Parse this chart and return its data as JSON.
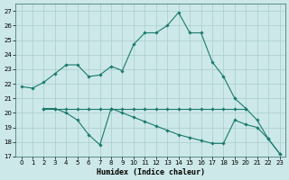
{
  "xlabel": "Humidex (Indice chaleur)",
  "bg_color": "#cce8e8",
  "grid_color": "#aacccc",
  "line_color": "#1a7a6e",
  "xlim": [
    -0.5,
    23.5
  ],
  "ylim": [
    17,
    27.5
  ],
  "yticks": [
    17,
    18,
    19,
    20,
    21,
    22,
    23,
    24,
    25,
    26,
    27
  ],
  "xticks": [
    0,
    1,
    2,
    3,
    4,
    5,
    6,
    7,
    8,
    9,
    10,
    11,
    12,
    13,
    14,
    15,
    16,
    17,
    18,
    19,
    20,
    21,
    22,
    23
  ],
  "line1_x": [
    0,
    1,
    2,
    3,
    4,
    5,
    6,
    7,
    8,
    9,
    10,
    11,
    12,
    13,
    14,
    15,
    16,
    17,
    18,
    19,
    20,
    21,
    22,
    23
  ],
  "line1_y": [
    21.8,
    21.7,
    22.1,
    22.7,
    23.3,
    23.3,
    22.5,
    22.6,
    23.2,
    22.9,
    24.7,
    25.5,
    25.5,
    26.0,
    26.9,
    25.5,
    25.5,
    23.5,
    22.5,
    21.0,
    20.3,
    19.5,
    18.2,
    17.2
  ],
  "line2_x": [
    2,
    3,
    4,
    5,
    6,
    7,
    8,
    9,
    10,
    11,
    12,
    13,
    14,
    15,
    16,
    17,
    18,
    19,
    20
  ],
  "line2_y": [
    20.3,
    20.3,
    20.3,
    20.3,
    20.3,
    20.3,
    20.3,
    20.3,
    20.3,
    20.3,
    20.3,
    20.3,
    20.3,
    20.3,
    20.3,
    20.3,
    20.3,
    20.3,
    20.3
  ],
  "line3_x": [
    2,
    3,
    4,
    5,
    6,
    7,
    8,
    9,
    10,
    11,
    12,
    13,
    14,
    15,
    16,
    17,
    18,
    19,
    20,
    21,
    22,
    23
  ],
  "line3_y": [
    20.3,
    20.3,
    20.0,
    19.5,
    18.5,
    17.8,
    20.3,
    20.0,
    19.7,
    19.4,
    19.1,
    18.8,
    18.5,
    18.3,
    18.1,
    17.9,
    17.9,
    19.5,
    19.2,
    19.0,
    18.2,
    17.2
  ]
}
